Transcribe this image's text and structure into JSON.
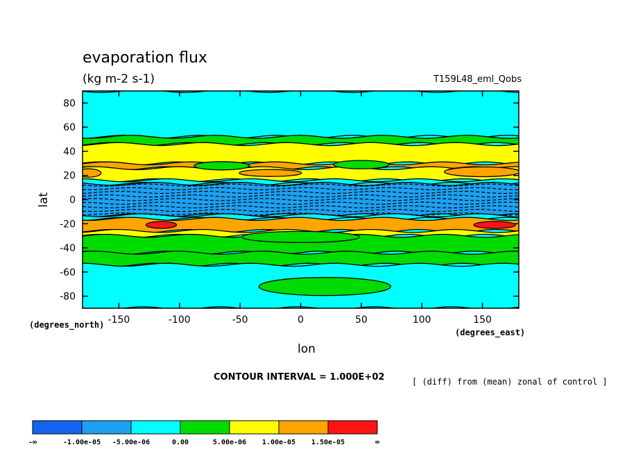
{
  "title": "evaporation flux",
  "units": "(kg m-2 s-1)",
  "run_label": "T159L48_eml_Qobs",
  "contour_interval_text": "CONTOUR INTERVAL = 1.000E+02",
  "note_text": "[ (diff) from (mean) zonal of control ]",
  "colorbar": {
    "colors": [
      "#1464f0",
      "#1ea0f0",
      "#00ffff",
      "#00dc00",
      "#ffff00",
      "#ffa500",
      "#ff1414"
    ],
    "labels": [
      "-∞",
      "-1.00e-05",
      "-5.00e-06",
      "0.00",
      "5.00e-06",
      "1.00e-05",
      "1.50e-05",
      "∞"
    ]
  },
  "chart_data": {
    "type": "heatmap",
    "title": "evaporation flux",
    "subtitle": "(kg m-2 s-1)",
    "xlabel": "lon",
    "ylabel": "lat",
    "x_units": "(degrees_east)",
    "y_units": "(degrees_north)",
    "xlim": [
      -180,
      180
    ],
    "ylim": [
      -90,
      90
    ],
    "x_ticks": [
      -150,
      -100,
      -50,
      0,
      50,
      100,
      150
    ],
    "y_ticks": [
      80,
      60,
      40,
      20,
      0,
      -20,
      -40,
      -60,
      -80
    ],
    "levels": [
      -1e-05,
      -5e-06,
      0.0,
      5e-06,
      1e-05,
      1.5e-05
    ],
    "contour_interval": "1.000E+02",
    "zonal_bands": [
      {
        "lat": [
          52,
          90
        ],
        "level": "-5.00e-06 to 0.00"
      },
      {
        "lat": [
          46,
          52
        ],
        "level": "0.00 to 5.00e-06"
      },
      {
        "lat": [
          30,
          46
        ],
        "level": "5.00e-06 to 1.00e-05"
      },
      {
        "lat": [
          26,
          30
        ],
        "level": "1.00e-05 to 1.50e-05"
      },
      {
        "lat": [
          16,
          26
        ],
        "level": "5.00e-06 to 1.00e-05"
      },
      {
        "lat": [
          13,
          16
        ],
        "level": "-5.00e-06 to 0.00"
      },
      {
        "lat": [
          -13,
          13
        ],
        "level": "-1.00e-05 to -5.00e-06"
      },
      {
        "lat": [
          -16,
          -13
        ],
        "level": "-5.00e-06 to 0.00"
      },
      {
        "lat": [
          -26,
          -16
        ],
        "level": "1.00e-05 to 1.50e-05"
      },
      {
        "lat": [
          -30,
          -26
        ],
        "level": "5.00e-06 to 1.00e-05"
      },
      {
        "lat": [
          -44,
          -30
        ],
        "level": "0.00 to 5.00e-06"
      },
      {
        "lat": [
          -54,
          -44
        ],
        "level": "0.00 to 5.00e-06"
      },
      {
        "lat": [
          -90,
          -54
        ],
        "level": "-5.00e-06 to 0.00"
      }
    ],
    "patches": [
      {
        "lon": -65,
        "lat": 28,
        "level": "0.00 to 5.00e-06"
      },
      {
        "lon": 50,
        "lat": 29,
        "level": "0.00 to 5.00e-06"
      },
      {
        "lon": 150,
        "lat": 23,
        "level": "1.00e-05 to 1.50e-05"
      },
      {
        "lon": -25,
        "lat": 22,
        "level": "1.00e-05 to 1.50e-05"
      },
      {
        "lon": -175,
        "lat": 22,
        "level": "1.00e-05 to 1.50e-05"
      },
      {
        "lon": -115,
        "lat": -21,
        "level": "1.50e-05 to ∞"
      },
      {
        "lon": 160,
        "lat": -21,
        "level": "1.50e-05 to ∞"
      },
      {
        "lon": 0,
        "lat": -31,
        "level": "0.00 to 5.00e-06"
      },
      {
        "lon": 20,
        "lat": -72,
        "level": "0.00 to 5.00e-06"
      }
    ]
  }
}
